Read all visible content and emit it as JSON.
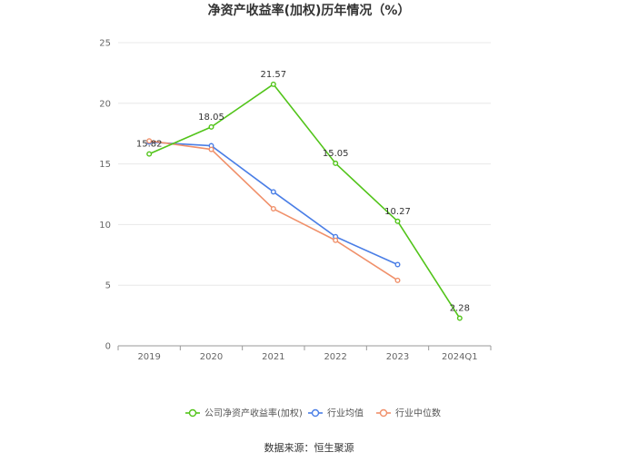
{
  "chart_data": {
    "type": "line",
    "title": "净资产收益率(加权)历年情况（%）",
    "categories": [
      "2019",
      "2020",
      "2021",
      "2022",
      "2023",
      "2024Q1"
    ],
    "yticks": [
      "0",
      "5",
      "10",
      "15",
      "20",
      "25"
    ],
    "ylim": [
      0,
      25
    ],
    "grid": true,
    "legend_position": "bottom",
    "series": [
      {
        "name": "公司净资产收益率(加权)",
        "color": "#52c41a",
        "values": [
          15.82,
          18.05,
          21.57,
          15.05,
          10.27,
          2.28
        ],
        "labels": [
          "15.82",
          "18.05",
          "21.57",
          "15.05",
          "10.27",
          "2.28"
        ]
      },
      {
        "name": "行业均值",
        "color": "#4a7ee6",
        "values": [
          16.8,
          16.5,
          12.7,
          9.0,
          6.7,
          null
        ]
      },
      {
        "name": "行业中位数",
        "color": "#f0906a",
        "values": [
          16.9,
          16.2,
          11.3,
          8.7,
          5.4,
          null
        ]
      }
    ]
  },
  "source": "数据来源：恒生聚源"
}
